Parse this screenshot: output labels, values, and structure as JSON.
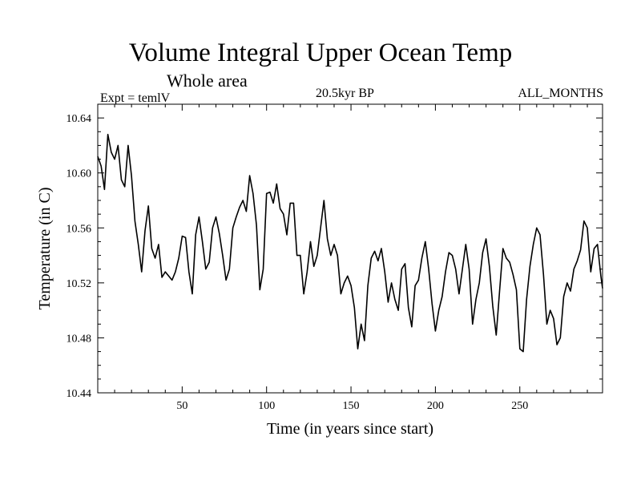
{
  "chart_data": {
    "type": "line",
    "title": "Volume Integral Upper Ocean Temp",
    "subtitle": "Whole area",
    "left_label": "Expt = temlV",
    "center_label": "20.5kyr BP",
    "right_label": "ALL_MONTHS",
    "xlabel": "Time (in years since start)",
    "ylabel": "Temperature (in C)",
    "xlim": [
      0,
      299
    ],
    "ylim": [
      10.44,
      10.65
    ],
    "x_ticks": [
      50,
      100,
      150,
      200,
      250
    ],
    "y_ticks": [
      10.44,
      10.48,
      10.52,
      10.56,
      10.6,
      10.64
    ],
    "y_tick_labels": [
      "10.44",
      "10.48",
      "10.52",
      "10.56",
      "10.60",
      "10.64"
    ],
    "series": [
      {
        "name": "Temperature",
        "x": [
          0,
          2,
          4,
          6,
          8,
          10,
          12,
          14,
          16,
          18,
          20,
          22,
          24,
          26,
          28,
          30,
          32,
          34,
          36,
          38,
          40,
          42,
          44,
          46,
          48,
          50,
          52,
          54,
          56,
          58,
          60,
          62,
          64,
          66,
          68,
          70,
          72,
          74,
          76,
          78,
          80,
          82,
          84,
          86,
          88,
          90,
          92,
          94,
          96,
          98,
          100,
          102,
          104,
          106,
          108,
          110,
          112,
          114,
          116,
          118,
          120,
          122,
          124,
          126,
          128,
          130,
          132,
          134,
          136,
          138,
          140,
          142,
          144,
          146,
          148,
          150,
          152,
          154,
          156,
          158,
          160,
          162,
          164,
          166,
          168,
          170,
          172,
          174,
          176,
          178,
          180,
          182,
          184,
          186,
          188,
          190,
          192,
          194,
          196,
          198,
          200,
          202,
          204,
          206,
          208,
          210,
          212,
          214,
          216,
          218,
          220,
          222,
          224,
          226,
          228,
          230,
          232,
          234,
          236,
          238,
          240,
          242,
          244,
          246,
          248,
          250,
          252,
          254,
          256,
          258,
          260,
          262,
          264,
          266,
          268,
          270,
          272,
          274,
          276,
          278,
          280,
          282,
          284,
          286,
          288,
          290,
          292,
          294,
          296,
          298,
          299
        ],
        "values": [
          10.612,
          10.605,
          10.588,
          10.628,
          10.615,
          10.61,
          10.62,
          10.595,
          10.59,
          10.62,
          10.598,
          10.565,
          10.548,
          10.528,
          10.558,
          10.576,
          10.545,
          10.538,
          10.548,
          10.524,
          10.528,
          10.525,
          10.522,
          10.528,
          10.538,
          10.554,
          10.553,
          10.528,
          10.512,
          10.555,
          10.568,
          10.55,
          10.53,
          10.535,
          10.56,
          10.568,
          10.556,
          10.54,
          10.522,
          10.53,
          10.56,
          10.568,
          10.575,
          10.58,
          10.572,
          10.598,
          10.585,
          10.562,
          10.515,
          10.53,
          10.585,
          10.586,
          10.578,
          10.592,
          10.574,
          10.57,
          10.555,
          10.578,
          10.578,
          10.54,
          10.54,
          10.512,
          10.528,
          10.55,
          10.532,
          10.54,
          10.56,
          10.58,
          10.552,
          10.54,
          10.548,
          10.54,
          10.512,
          10.52,
          10.525,
          10.518,
          10.502,
          10.472,
          10.49,
          10.478,
          10.518,
          10.538,
          10.543,
          10.536,
          10.545,
          10.528,
          10.506,
          10.52,
          10.508,
          10.5,
          10.53,
          10.534,
          10.502,
          10.488,
          10.518,
          10.522,
          10.538,
          10.55,
          10.53,
          10.505,
          10.485,
          10.5,
          10.51,
          10.528,
          10.542,
          10.54,
          10.53,
          10.512,
          10.53,
          10.548,
          10.53,
          10.49,
          10.508,
          10.52,
          10.542,
          10.552,
          10.532,
          10.503,
          10.482,
          10.514,
          10.545,
          10.538,
          10.535,
          10.526,
          10.515,
          10.472,
          10.47,
          10.508,
          10.532,
          10.548,
          10.56,
          10.555,
          10.526,
          10.49,
          10.5,
          10.494,
          10.475,
          10.48,
          10.51,
          10.52,
          10.514,
          10.53,
          10.536,
          10.544,
          10.565,
          10.56,
          10.528,
          10.545,
          10.548,
          10.525,
          10.516
        ]
      }
    ]
  }
}
